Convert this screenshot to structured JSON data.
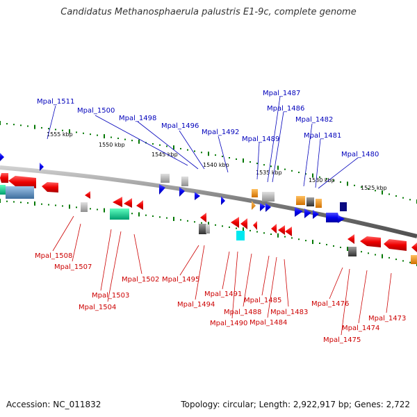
{
  "title": "Candidatus Methanosphaerula palustris E1-9c, complete genome",
  "accession": "Accession: NC_011832",
  "topology": "Topology: circular; Length: 2,922,917 bp; Genes: 2,722",
  "colors": {
    "upper_labels": "#0000bb",
    "lower_labels": "#cc0000",
    "forward_gene": "#0000ee",
    "reverse_gene": "#ee0000",
    "backbone": "#808080",
    "ticks": "#007700"
  },
  "scale": [
    "1555 kbp",
    "1550 kbp",
    "1545 kbp",
    "1540 kbp",
    "1535 kbp",
    "1530 kbp",
    "1525 kbp"
  ],
  "upper_labels": [
    "Mpal_1511",
    "Mpal_1500",
    "Mpal_1498",
    "Mpal_1496",
    "Mpal_1492",
    "Mpal_1489",
    "Mpal_1487",
    "Mpal_1486",
    "Mpal_1482",
    "Mpal_1481",
    "Mpal_1480"
  ],
  "lower_labels": [
    "Mpal_1508",
    "Mpal_1507",
    "Mpal_1503",
    "Mpal_1504",
    "Mpal_1502",
    "Mpal_1495",
    "Mpal_1494",
    "Mpal_1491",
    "Mpal_1488",
    "Mpal_1490",
    "Mpal_1485",
    "Mpal_1484",
    "Mpal_1483",
    "Mpal_1476",
    "Mpal_1475",
    "Mpal_1474",
    "Mpal_1473"
  ]
}
